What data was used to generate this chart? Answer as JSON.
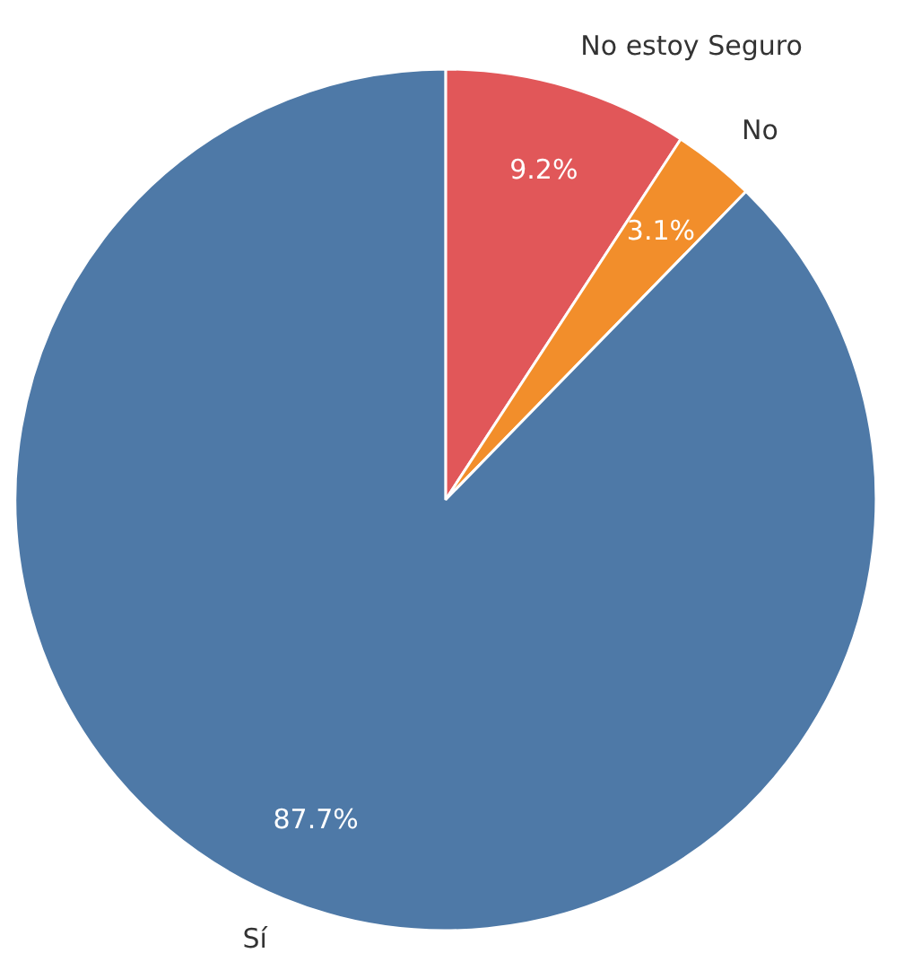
{
  "chart_data": {
    "type": "pie",
    "categories": [
      "No estoy Seguro",
      "No",
      "Sí"
    ],
    "values": [
      9.2,
      3.1,
      87.7
    ],
    "colors": [
      "#e15759",
      "#f28e2b",
      "#4e79a7"
    ],
    "value_labels": [
      "9.2%",
      "3.1%",
      "87.7%"
    ]
  }
}
